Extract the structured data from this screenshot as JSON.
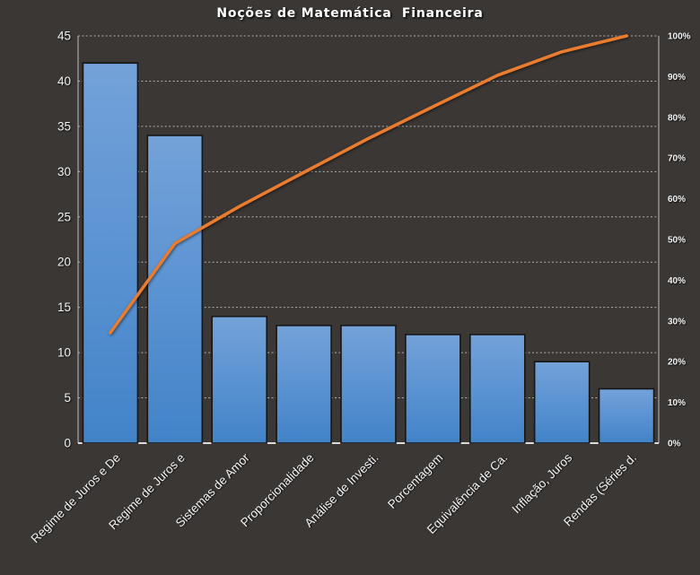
{
  "chart_data": {
    "type": "bar",
    "subtype": "pareto-with-cumulative-line",
    "title": "Noções de Matemática  Financeira",
    "categories": [
      "Regime de Juros e De",
      "Regime de Juros e",
      "Sistemas de Amor",
      "Proporcionalidade",
      "Análise de Investi.",
      "Porcentagem",
      "Equivalência de Ca.",
      "Inflação, Juros",
      "Rendas (Séries d."
    ],
    "series": [
      {
        "type": "bar",
        "axis": "left",
        "values": [
          42,
          34,
          14,
          13,
          13,
          12,
          12,
          9,
          6
        ]
      },
      {
        "type": "line",
        "axis": "right",
        "values_percent": [
          27.1,
          49.0,
          58.1,
          66.5,
          74.8,
          82.6,
          90.3,
          96.1,
          100.0
        ]
      }
    ],
    "left_axis": {
      "min": 0,
      "max": 45,
      "step": 5,
      "ticks": [
        "0",
        "5",
        "10",
        "15",
        "20",
        "25",
        "30",
        "35",
        "40",
        "45"
      ]
    },
    "right_axis": {
      "min": "0%",
      "max": "100%",
      "ticks": [
        "0%",
        "10%",
        "20%",
        "30%",
        "40%",
        "50%",
        "60%",
        "70%",
        "80%",
        "90%",
        "100%"
      ]
    },
    "grid": "horizontal-dashed",
    "legend": "none",
    "colors": {
      "background": "#3a3735",
      "bar_gradient_top": "#74a2d9",
      "bar_gradient_mid": "#5b93d2",
      "bar_gradient_bottom": "#4283c8",
      "bar_border": "#161616",
      "line": "#ea7c2f",
      "text": "#f2f2f2",
      "gridline": "#d8d8d8"
    }
  }
}
